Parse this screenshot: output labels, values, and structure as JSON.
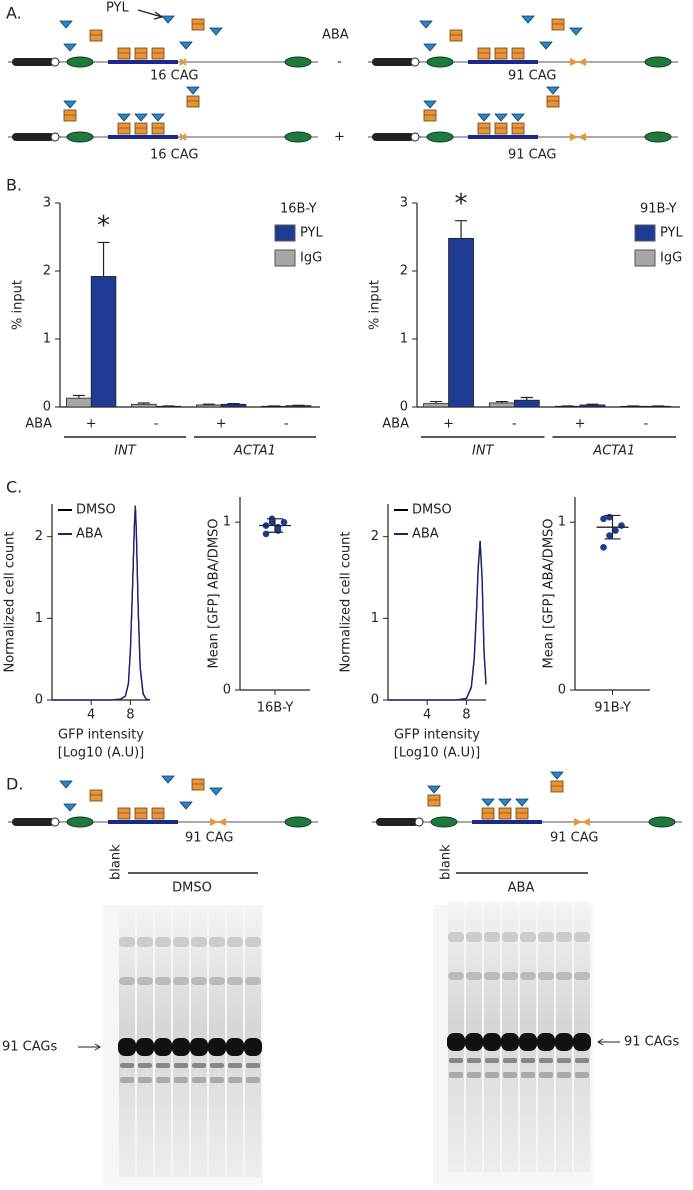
{
  "diagrams": {
    "panel_labels": [
      "A.",
      "B.",
      "C.",
      "D."
    ],
    "pyl": "PYL",
    "aba": "ABA",
    "signs": [
      "-",
      "+"
    ],
    "constructs_a": [
      [
        "16 CAG",
        "91 CAG"
      ],
      [
        "16 CAG",
        "91 CAG"
      ]
    ],
    "constructs_d": [
      "91 CAG",
      "91 CAG"
    ],
    "gels": [
      {
        "blank": "blank",
        "treatment": "DMSO",
        "band": "91 CAGs"
      },
      {
        "blank": "blank",
        "treatment": "ABA",
        "band": "91 CAGs"
      }
    ]
  },
  "chart_data": [
    {
      "type": "bar",
      "title": "16B-Y",
      "ylabel": "% input",
      "row_label": "ABA",
      "annotation": "*",
      "categories": [
        "+",
        "-",
        "+",
        "-"
      ],
      "groups": [
        "INT",
        "ACTA1"
      ],
      "series": [
        {
          "name": "PYL",
          "color": "#1f3a93",
          "values": [
            1.92,
            0.01,
            0.04,
            0.02
          ],
          "errors": [
            0.5,
            0.005,
            0.01,
            0.005
          ]
        },
        {
          "name": "IgG",
          "color": "#a6a6a6",
          "values": [
            0.13,
            0.04,
            0.03,
            0.01
          ],
          "errors": [
            0.04,
            0.02,
            0.01,
            0.005
          ]
        }
      ],
      "ylim": [
        0,
        3
      ],
      "yticks": [
        0,
        1,
        2,
        3
      ]
    },
    {
      "type": "bar",
      "title": "91B-Y",
      "ylabel": "% input",
      "row_label": "ABA",
      "annotation": "*",
      "categories": [
        "+",
        "-",
        "+",
        "-"
      ],
      "groups": [
        "INT",
        "ACTA1"
      ],
      "series": [
        {
          "name": "PYL",
          "color": "#1f3a93",
          "values": [
            2.48,
            0.1,
            0.03,
            0.01
          ],
          "errors": [
            0.26,
            0.04,
            0.01,
            0.005
          ]
        },
        {
          "name": "IgG",
          "color": "#a6a6a6",
          "values": [
            0.05,
            0.06,
            0.01,
            0.01
          ],
          "errors": [
            0.03,
            0.02,
            0.005,
            0.005
          ]
        }
      ],
      "ylim": [
        0,
        3
      ],
      "yticks": [
        0,
        1,
        2,
        3
      ]
    },
    {
      "type": "line",
      "ylabel": "Normalized cell count",
      "xlabel": [
        "GFP intensity",
        "[Log10 (A.U)]"
      ],
      "x": [
        0,
        6,
        7,
        7.5,
        7.8,
        8.0,
        8.2,
        8.4,
        8.5,
        8.6,
        8.8,
        9.0,
        9.3,
        9.6,
        10
      ],
      "series": [
        {
          "name": "DMSO",
          "color": "#000000",
          "values": [
            0,
            0,
            0.01,
            0.05,
            0.2,
            0.6,
            1.3,
            2.1,
            2.38,
            2.1,
            1.1,
            0.4,
            0.08,
            0.01,
            0
          ]
        },
        {
          "name": "ABA",
          "color": "#1a237e",
          "values": [
            0,
            0,
            0.01,
            0.05,
            0.21,
            0.62,
            1.32,
            2.12,
            2.38,
            2.08,
            1.08,
            0.38,
            0.07,
            0.01,
            0
          ]
        }
      ],
      "xlim": [
        0,
        10
      ],
      "xticks": [
        4,
        8
      ],
      "ylim": [
        0,
        2.4
      ],
      "yticks": [
        0,
        1,
        2
      ]
    },
    {
      "type": "strip",
      "ylabel": "Mean [GFP] ABA/DMSO",
      "categories": [
        "16B-Y"
      ],
      "color": "#1f3a93",
      "values": [
        0.98,
        1.02,
        0.95,
        1.0,
        0.93,
        1.0,
        0.97
      ],
      "mean": 0.98,
      "sd": 0.04,
      "ylim": [
        0,
        1.15
      ],
      "yticks": [
        0,
        1
      ]
    },
    {
      "type": "line",
      "ylabel": "Normalized cell count",
      "xlabel": [
        "GFP intensity",
        "[Log10 (A.U)]"
      ],
      "x": [
        0,
        7,
        8,
        8.5,
        8.8,
        9.0,
        9.2,
        9.4,
        9.6,
        9.8,
        10
      ],
      "series": [
        {
          "name": "DMSO",
          "color": "#000000",
          "values": [
            0,
            0,
            0.02,
            0.15,
            0.5,
            1.0,
            1.6,
            1.95,
            1.5,
            0.6,
            0.2
          ]
        },
        {
          "name": "ABA",
          "color": "#1a237e",
          "values": [
            0,
            0,
            0.02,
            0.16,
            0.52,
            1.02,
            1.62,
            1.94,
            1.48,
            0.58,
            0.19
          ]
        }
      ],
      "xlim": [
        0,
        10
      ],
      "xticks": [
        4,
        8
      ],
      "ylim": [
        0,
        2.4
      ],
      "yticks": [
        0,
        1,
        2
      ]
    },
    {
      "type": "strip",
      "ylabel": "Mean [GFP] ABA/DMSO",
      "categories": [
        "91B-Y"
      ],
      "color": "#1f3a93",
      "values": [
        1.02,
        1.03,
        0.95,
        0.98,
        0.85,
        0.92
      ],
      "mean": 0.97,
      "sd": 0.07,
      "ylim": [
        0,
        1.15
      ],
      "yticks": [
        0,
        1
      ]
    }
  ]
}
